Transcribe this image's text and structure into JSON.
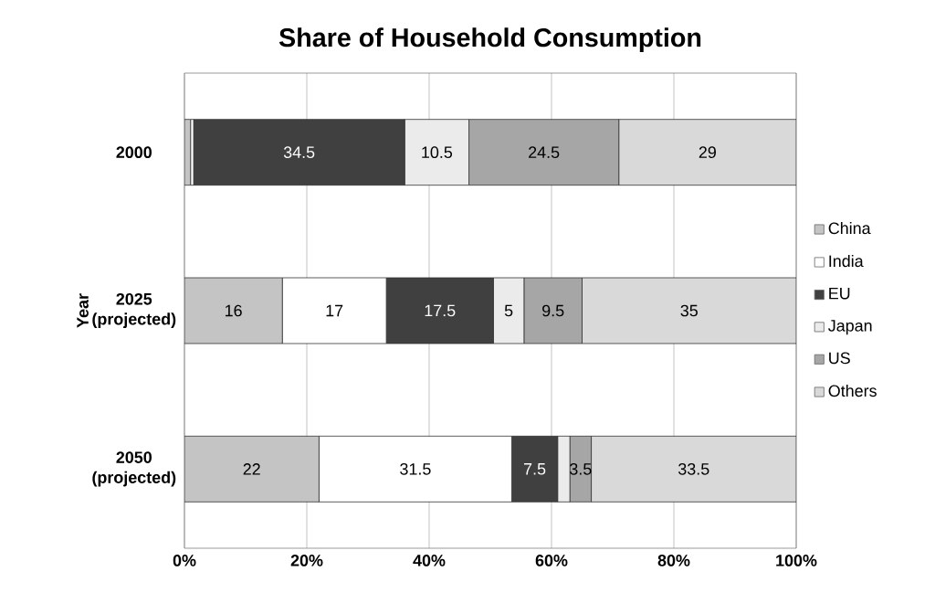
{
  "chart_data": {
    "type": "bar",
    "orientation": "horizontal",
    "stacked": true,
    "title": "Share of Household Consumption",
    "ylabel": "Year",
    "categories": [
      "2000",
      "2025 (projected)",
      "2050 (projected)"
    ],
    "series": [
      {
        "name": "China",
        "color": "#c4c4c4",
        "values": [
          1,
          16,
          22
        ],
        "value_labels": [
          null,
          "16",
          "22"
        ]
      },
      {
        "name": "India",
        "color": "#ffffff",
        "values": [
          0.5,
          17,
          31.5
        ],
        "value_labels": [
          null,
          "17",
          "31.5"
        ]
      },
      {
        "name": "EU",
        "color": "#404040",
        "values": [
          34.5,
          17.5,
          7.5
        ],
        "value_labels": [
          "34.5",
          "17.5",
          "7.5"
        ]
      },
      {
        "name": "Japan",
        "color": "#ebebeb",
        "values": [
          10.5,
          5,
          2
        ],
        "value_labels": [
          "10.5",
          "5",
          null
        ]
      },
      {
        "name": "US",
        "color": "#a6a6a6",
        "values": [
          24.5,
          9.5,
          3.5
        ],
        "value_labels": [
          "24.5",
          "9.5",
          "3.5"
        ]
      },
      {
        "name": "Others",
        "color": "#d9d9d9",
        "values": [
          29,
          35,
          33.5
        ],
        "value_labels": [
          "29",
          "35",
          "33.5"
        ]
      }
    ],
    "xlim": [
      0,
      100
    ],
    "xticks": [
      {
        "value": 0,
        "label": "0%"
      },
      {
        "value": 20,
        "label": "20%"
      },
      {
        "value": 40,
        "label": "40%"
      },
      {
        "value": 60,
        "label": "60%"
      },
      {
        "value": 80,
        "label": "80%"
      },
      {
        "value": 100,
        "label": "100%"
      }
    ],
    "grid": "x",
    "legend": "right"
  }
}
